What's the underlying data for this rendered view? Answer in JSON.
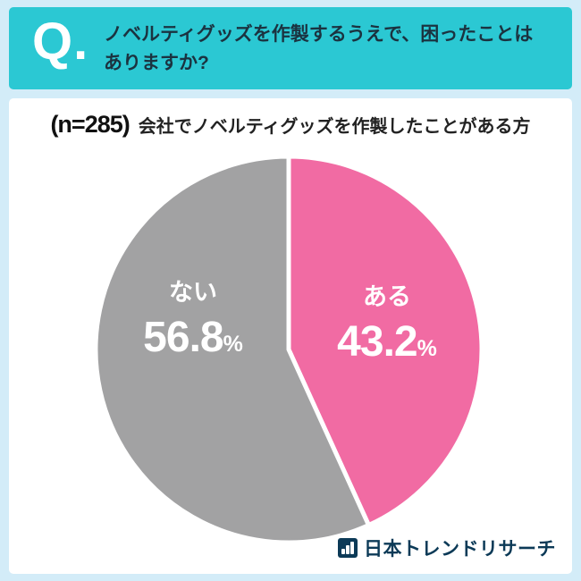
{
  "header": {
    "q_label": "Q.",
    "question_line1": "ノベルティグッズを作製するうえで、困ったことは",
    "question_line2": "ありますか?"
  },
  "subtitle": {
    "sample": "(n=285)",
    "description": "会社でノベルティグッズを作製したことがある方"
  },
  "chart_data": {
    "type": "pie",
    "title": "ノベルティグッズを作製するうえで、困ったことはありますか?",
    "labels": [
      "ある",
      "ない"
    ],
    "values": [
      43.2,
      56.8
    ],
    "colors": [
      "#f16ba3",
      "#a2a2a3"
    ],
    "value_unit": "%",
    "start_angle_deg": -90,
    "direction": "clockwise",
    "legend_position": "none",
    "note": "(n=285) 会社でノベルティグッズを作製したことがある方"
  },
  "footer": {
    "brand": "日本トレンドリサーチ"
  },
  "colors": {
    "background": "#d3ecf8",
    "header_band": "#2bc8d3",
    "header_text": "#1b3340",
    "slice_yes": "#f16ba3",
    "slice_no": "#a2a2a3",
    "brand_navy": "#0c3a57"
  }
}
